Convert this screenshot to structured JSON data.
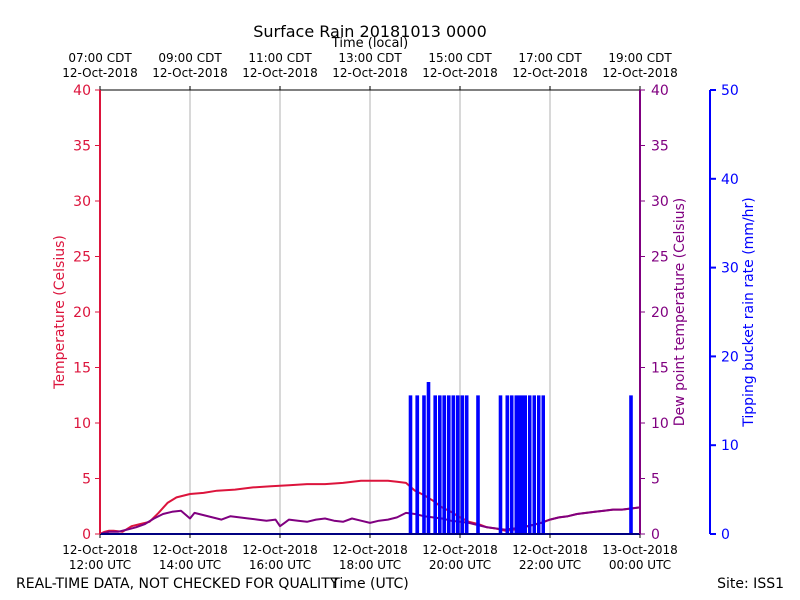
{
  "chart_data": {
    "type": "line",
    "title": "Surface Rain 20181013 0000",
    "top_axis_title": "Time (local)",
    "xlabel": "Time (UTC)",
    "y_left_label": "Temperature (Celsius)",
    "y_right1_label": "Dew point temperature (Celsius)",
    "y_right2_label": "Tipping bucket rain rate (mm/hr)",
    "xlim_hours": [
      12,
      24
    ],
    "ylim_temp": [
      0,
      40
    ],
    "ylim_rain": [
      0,
      50
    ],
    "bottom_ticks": [
      {
        "hour": 12,
        "line1": "12-Oct-2018",
        "line2": "12:00 UTC"
      },
      {
        "hour": 14,
        "line1": "12-Oct-2018",
        "line2": "14:00 UTC"
      },
      {
        "hour": 16,
        "line1": "12-Oct-2018",
        "line2": "16:00 UTC"
      },
      {
        "hour": 18,
        "line1": "12-Oct-2018",
        "line2": "18:00 UTC"
      },
      {
        "hour": 20,
        "line1": "12-Oct-2018",
        "line2": "20:00 UTC"
      },
      {
        "hour": 22,
        "line1": "12-Oct-2018",
        "line2": "22:00 UTC"
      },
      {
        "hour": 24,
        "line1": "13-Oct-2018",
        "line2": "00:00 UTC"
      }
    ],
    "top_ticks": [
      {
        "hour": 12,
        "line1": "07:00 CDT",
        "line2": "12-Oct-2018"
      },
      {
        "hour": 14,
        "line1": "09:00 CDT",
        "line2": "12-Oct-2018"
      },
      {
        "hour": 16,
        "line1": "11:00 CDT",
        "line2": "12-Oct-2018"
      },
      {
        "hour": 18,
        "line1": "13:00 CDT",
        "line2": "12-Oct-2018"
      },
      {
        "hour": 20,
        "line1": "15:00 CDT",
        "line2": "12-Oct-2018"
      },
      {
        "hour": 22,
        "line1": "17:00 CDT",
        "line2": "12-Oct-2018"
      },
      {
        "hour": 24,
        "line1": "19:00 CDT",
        "line2": "12-Oct-2018"
      }
    ],
    "temp_ticks": [
      "0",
      "5",
      "10",
      "15",
      "20",
      "25",
      "30",
      "35",
      "40"
    ],
    "rain_ticks": [
      "0",
      "10",
      "20",
      "30",
      "40",
      "50"
    ],
    "series": [
      {
        "name": "Temperature",
        "color": "#dc143c",
        "x": [
          12.0,
          12.1,
          12.2,
          12.3,
          12.5,
          12.7,
          12.9,
          13.1,
          13.3,
          13.5,
          13.7,
          14.0,
          14.3,
          14.6,
          15.0,
          15.4,
          15.8,
          16.2,
          16.6,
          17.0,
          17.4,
          17.8,
          18.2,
          18.4,
          18.6,
          18.8,
          19.0,
          19.2,
          19.4,
          19.6,
          19.8,
          20.0,
          20.2,
          20.4,
          20.6,
          20.8,
          21.0,
          21.2,
          21.4,
          21.6,
          21.8,
          22.0,
          22.2,
          22.4,
          22.6,
          22.8,
          23.0,
          23.2,
          23.4,
          23.6,
          23.8,
          24.0
        ],
        "values": [
          0.0,
          0.2,
          0.3,
          0.3,
          0.2,
          0.7,
          0.9,
          1.1,
          1.9,
          2.8,
          3.3,
          3.6,
          3.7,
          3.9,
          4.0,
          4.2,
          4.3,
          4.4,
          4.5,
          4.5,
          4.6,
          4.8,
          4.8,
          4.8,
          4.7,
          4.6,
          3.9,
          3.5,
          3.0,
          2.4,
          2.0,
          1.5,
          1.1,
          0.9,
          0.6,
          0.5,
          0.3,
          0.4,
          0.6,
          0.8,
          1.0,
          1.3,
          1.5,
          1.6,
          1.8,
          1.9,
          2.0,
          2.1,
          2.2,
          2.2,
          2.3,
          2.4
        ]
      },
      {
        "name": "Dew point",
        "color": "#800080",
        "x": [
          12.0,
          12.2,
          12.4,
          12.6,
          12.8,
          13.0,
          13.2,
          13.4,
          13.6,
          13.8,
          14.0,
          14.1,
          14.3,
          14.5,
          14.7,
          14.9,
          15.1,
          15.3,
          15.5,
          15.7,
          15.9,
          16.0,
          16.1,
          16.2,
          16.4,
          16.6,
          16.8,
          17.0,
          17.2,
          17.4,
          17.6,
          17.8,
          18.0,
          18.2,
          18.4,
          18.6,
          18.8,
          19.0,
          19.2,
          19.4,
          19.6,
          19.8,
          20.0,
          20.2,
          20.4,
          20.6,
          20.8,
          21.0,
          21.2,
          21.4,
          21.6,
          21.8,
          22.0,
          22.2,
          22.4,
          22.6,
          22.8,
          23.0,
          23.2,
          23.4,
          23.6,
          23.8,
          24.0
        ],
        "values": [
          0.0,
          0.2,
          0.2,
          0.4,
          0.6,
          0.9,
          1.4,
          1.8,
          2.0,
          2.1,
          1.4,
          1.9,
          1.7,
          1.5,
          1.3,
          1.6,
          1.5,
          1.4,
          1.3,
          1.2,
          1.3,
          0.7,
          1.0,
          1.3,
          1.2,
          1.1,
          1.3,
          1.4,
          1.2,
          1.1,
          1.4,
          1.2,
          1.0,
          1.2,
          1.3,
          1.5,
          1.9,
          1.8,
          1.6,
          1.5,
          1.4,
          1.2,
          1.1,
          1.0,
          0.8,
          0.6,
          0.5,
          0.4,
          0.5,
          0.6,
          0.8,
          1.0,
          1.3,
          1.5,
          1.6,
          1.8,
          1.9,
          2.0,
          2.1,
          2.2,
          2.2,
          2.3,
          2.4
        ]
      },
      {
        "name": "Rain rate",
        "color": "#0000ff",
        "axis": "rain",
        "x": [
          18.9,
          19.05,
          19.2,
          19.3,
          19.45,
          19.55,
          19.65,
          19.75,
          19.85,
          19.95,
          20.05,
          20.15,
          20.4,
          20.9,
          21.05,
          21.15,
          21.25,
          21.3,
          21.35,
          21.4,
          21.45,
          21.55,
          21.65,
          21.75,
          21.85,
          23.8
        ],
        "values": [
          15.5,
          15.5,
          15.5,
          17,
          15.5,
          15.5,
          15.5,
          15.5,
          15.5,
          15.5,
          15.5,
          15.5,
          15.5,
          15.5,
          15.5,
          15.5,
          15.5,
          15.5,
          15.5,
          15.5,
          15.5,
          15.5,
          15.5,
          15.5,
          15.5,
          15.5
        ]
      }
    ]
  },
  "footer": {
    "disclaimer": "REAL-TIME DATA, NOT CHECKED FOR QUALITY",
    "site": "Site: ISS1"
  }
}
